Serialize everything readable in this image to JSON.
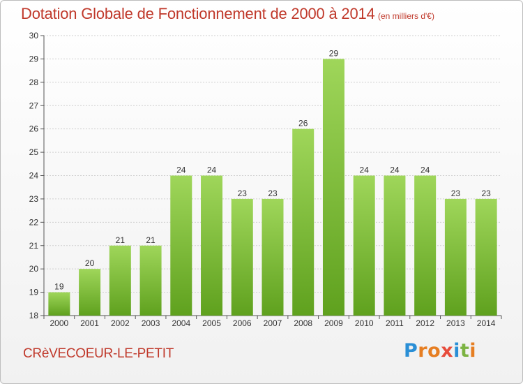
{
  "chart_data": {
    "type": "bar",
    "title": "Dotation Globale de Fonctionnement de 2000 à 2014",
    "unit_note": "(en milliers d'€)",
    "categories": [
      "2000",
      "2001",
      "2002",
      "2003",
      "2004",
      "2005",
      "2006",
      "2007",
      "2008",
      "2009",
      "2010",
      "2011",
      "2012",
      "2013",
      "2014"
    ],
    "values": [
      19,
      20,
      21,
      21,
      24,
      24,
      23,
      23,
      26,
      29,
      24,
      24,
      24,
      23,
      23
    ],
    "data_labels": [
      "19",
      "20",
      "21",
      "21",
      "24",
      "24",
      "23",
      "23",
      "26",
      "29",
      "24",
      "24",
      "24",
      "23",
      "23"
    ],
    "y_ticks": [
      "18",
      "19",
      "20",
      "21",
      "22",
      "23",
      "24",
      "25",
      "26",
      "27",
      "28",
      "29",
      "30"
    ],
    "ylim": [
      18,
      30
    ],
    "grid": true,
    "bar_color": "#7fbf3a",
    "xlabel": "",
    "ylabel": ""
  },
  "footer": {
    "commune": "CRèVECOEUR-LE-PETIT",
    "logo_letters": [
      "P",
      "r",
      "o",
      "x",
      "i",
      "t",
      "i"
    ],
    "logo_colors": [
      "#2a8fd6",
      "#e67e22",
      "#e67e22",
      "#e74c3c",
      "#2a8fd6",
      "#7cb342",
      "#e67e22"
    ]
  },
  "colors": {
    "accent_text": "#c0392b",
    "grid": "#cfcfcf"
  }
}
